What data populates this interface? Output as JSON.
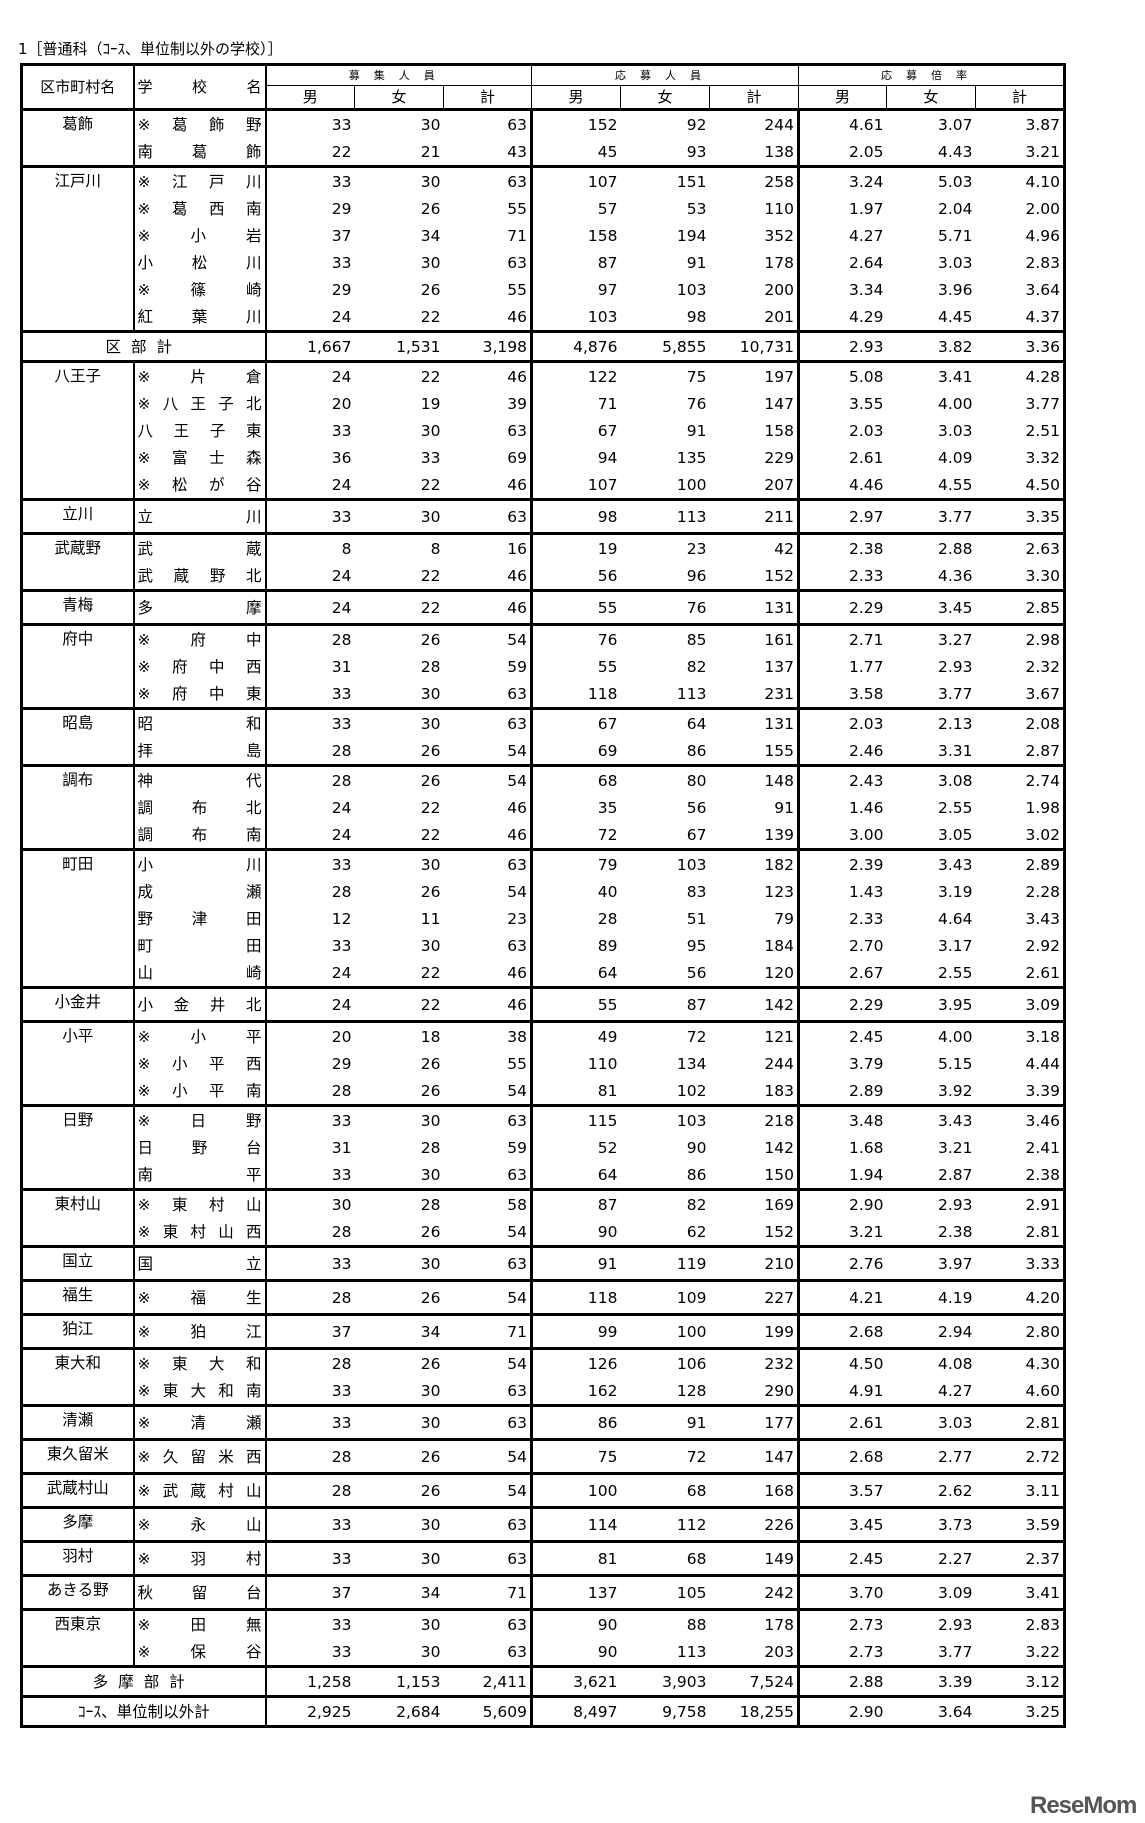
{
  "title": "1［普通科（ｺｰｽ、単位制以外の学校）］",
  "headers": {
    "district": "区市町村名",
    "school": "学　校　名",
    "groups": [
      "募集人員",
      "応募人員",
      "応募倍率"
    ],
    "sub": [
      "男",
      "女",
      "計"
    ]
  },
  "sections": [
    {
      "district": "葛飾",
      "rows": [
        {
          "school": "※葛飾野",
          "v": [
            "33",
            "30",
            "63",
            "152",
            "92",
            "244",
            "4.61",
            "3.07",
            "3.87"
          ]
        },
        {
          "school": "南葛飾",
          "v": [
            "22",
            "21",
            "43",
            "45",
            "93",
            "138",
            "2.05",
            "4.43",
            "3.21"
          ]
        }
      ]
    },
    {
      "district": "江戸川",
      "rows": [
        {
          "school": "※江戸川",
          "v": [
            "33",
            "30",
            "63",
            "107",
            "151",
            "258",
            "3.24",
            "5.03",
            "4.10"
          ]
        },
        {
          "school": "※葛西南",
          "v": [
            "29",
            "26",
            "55",
            "57",
            "53",
            "110",
            "1.97",
            "2.04",
            "2.00"
          ]
        },
        {
          "school": "※小岩",
          "v": [
            "37",
            "34",
            "71",
            "158",
            "194",
            "352",
            "4.27",
            "5.71",
            "4.96"
          ]
        },
        {
          "school": "小松川",
          "v": [
            "33",
            "30",
            "63",
            "87",
            "91",
            "178",
            "2.64",
            "3.03",
            "2.83"
          ]
        },
        {
          "school": "※篠崎",
          "v": [
            "29",
            "26",
            "55",
            "97",
            "103",
            "200",
            "3.34",
            "3.96",
            "3.64"
          ]
        },
        {
          "school": "紅葉川",
          "v": [
            "24",
            "22",
            "46",
            "103",
            "98",
            "201",
            "4.29",
            "4.45",
            "4.37"
          ]
        }
      ]
    },
    {
      "subtotal": "区部計",
      "v": [
        "1,667",
        "1,531",
        "3,198",
        "4,876",
        "5,855",
        "10,731",
        "2.93",
        "3.82",
        "3.36"
      ]
    },
    {
      "district": "八王子",
      "rows": [
        {
          "school": "※片倉",
          "v": [
            "24",
            "22",
            "46",
            "122",
            "75",
            "197",
            "5.08",
            "3.41",
            "4.28"
          ]
        },
        {
          "school": "※八王子北",
          "v": [
            "20",
            "19",
            "39",
            "71",
            "76",
            "147",
            "3.55",
            "4.00",
            "3.77"
          ]
        },
        {
          "school": "八王子東",
          "v": [
            "33",
            "30",
            "63",
            "67",
            "91",
            "158",
            "2.03",
            "3.03",
            "2.51"
          ]
        },
        {
          "school": "※富士森",
          "v": [
            "36",
            "33",
            "69",
            "94",
            "135",
            "229",
            "2.61",
            "4.09",
            "3.32"
          ]
        },
        {
          "school": "※松が谷",
          "v": [
            "24",
            "22",
            "46",
            "107",
            "100",
            "207",
            "4.46",
            "4.55",
            "4.50"
          ]
        }
      ]
    },
    {
      "district": "立川",
      "rows": [
        {
          "school": "立川",
          "v": [
            "33",
            "30",
            "63",
            "98",
            "113",
            "211",
            "2.97",
            "3.77",
            "3.35"
          ]
        }
      ]
    },
    {
      "district": "武蔵野",
      "rows": [
        {
          "school": "武蔵",
          "v": [
            "8",
            "8",
            "16",
            "19",
            "23",
            "42",
            "2.38",
            "2.88",
            "2.63"
          ]
        },
        {
          "school": "武蔵野北",
          "v": [
            "24",
            "22",
            "46",
            "56",
            "96",
            "152",
            "2.33",
            "4.36",
            "3.30"
          ]
        }
      ]
    },
    {
      "district": "青梅",
      "rows": [
        {
          "school": "多摩",
          "v": [
            "24",
            "22",
            "46",
            "55",
            "76",
            "131",
            "2.29",
            "3.45",
            "2.85"
          ]
        }
      ]
    },
    {
      "district": "府中",
      "rows": [
        {
          "school": "※府中",
          "v": [
            "28",
            "26",
            "54",
            "76",
            "85",
            "161",
            "2.71",
            "3.27",
            "2.98"
          ]
        },
        {
          "school": "※府中西",
          "v": [
            "31",
            "28",
            "59",
            "55",
            "82",
            "137",
            "1.77",
            "2.93",
            "2.32"
          ]
        },
        {
          "school": "※府中東",
          "v": [
            "33",
            "30",
            "63",
            "118",
            "113",
            "231",
            "3.58",
            "3.77",
            "3.67"
          ]
        }
      ]
    },
    {
      "district": "昭島",
      "rows": [
        {
          "school": "昭和",
          "v": [
            "33",
            "30",
            "63",
            "67",
            "64",
            "131",
            "2.03",
            "2.13",
            "2.08"
          ]
        },
        {
          "school": "拝島",
          "v": [
            "28",
            "26",
            "54",
            "69",
            "86",
            "155",
            "2.46",
            "3.31",
            "2.87"
          ]
        }
      ]
    },
    {
      "district": "調布",
      "rows": [
        {
          "school": "神代",
          "v": [
            "28",
            "26",
            "54",
            "68",
            "80",
            "148",
            "2.43",
            "3.08",
            "2.74"
          ]
        },
        {
          "school": "調布北",
          "v": [
            "24",
            "22",
            "46",
            "35",
            "56",
            "91",
            "1.46",
            "2.55",
            "1.98"
          ]
        },
        {
          "school": "調布南",
          "v": [
            "24",
            "22",
            "46",
            "72",
            "67",
            "139",
            "3.00",
            "3.05",
            "3.02"
          ]
        }
      ]
    },
    {
      "district": "町田",
      "rows": [
        {
          "school": "小川",
          "v": [
            "33",
            "30",
            "63",
            "79",
            "103",
            "182",
            "2.39",
            "3.43",
            "2.89"
          ]
        },
        {
          "school": "成瀬",
          "v": [
            "28",
            "26",
            "54",
            "40",
            "83",
            "123",
            "1.43",
            "3.19",
            "2.28"
          ]
        },
        {
          "school": "野津田",
          "v": [
            "12",
            "11",
            "23",
            "28",
            "51",
            "79",
            "2.33",
            "4.64",
            "3.43"
          ]
        },
        {
          "school": "町田",
          "v": [
            "33",
            "30",
            "63",
            "89",
            "95",
            "184",
            "2.70",
            "3.17",
            "2.92"
          ]
        },
        {
          "school": "山崎",
          "v": [
            "24",
            "22",
            "46",
            "64",
            "56",
            "120",
            "2.67",
            "2.55",
            "2.61"
          ]
        }
      ]
    },
    {
      "district": "小金井",
      "rows": [
        {
          "school": "小金井北",
          "v": [
            "24",
            "22",
            "46",
            "55",
            "87",
            "142",
            "2.29",
            "3.95",
            "3.09"
          ]
        }
      ]
    },
    {
      "district": "小平",
      "rows": [
        {
          "school": "※小平",
          "v": [
            "20",
            "18",
            "38",
            "49",
            "72",
            "121",
            "2.45",
            "4.00",
            "3.18"
          ]
        },
        {
          "school": "※小平西",
          "v": [
            "29",
            "26",
            "55",
            "110",
            "134",
            "244",
            "3.79",
            "5.15",
            "4.44"
          ]
        },
        {
          "school": "※小平南",
          "v": [
            "28",
            "26",
            "54",
            "81",
            "102",
            "183",
            "2.89",
            "3.92",
            "3.39"
          ]
        }
      ]
    },
    {
      "district": "日野",
      "rows": [
        {
          "school": "※日野",
          "v": [
            "33",
            "30",
            "63",
            "115",
            "103",
            "218",
            "3.48",
            "3.43",
            "3.46"
          ]
        },
        {
          "school": "日野台",
          "v": [
            "31",
            "28",
            "59",
            "52",
            "90",
            "142",
            "1.68",
            "3.21",
            "2.41"
          ]
        },
        {
          "school": "南平",
          "v": [
            "33",
            "30",
            "63",
            "64",
            "86",
            "150",
            "1.94",
            "2.87",
            "2.38"
          ]
        }
      ]
    },
    {
      "district": "東村山",
      "rows": [
        {
          "school": "※東村山",
          "v": [
            "30",
            "28",
            "58",
            "87",
            "82",
            "169",
            "2.90",
            "2.93",
            "2.91"
          ]
        },
        {
          "school": "※東村山西",
          "v": [
            "28",
            "26",
            "54",
            "90",
            "62",
            "152",
            "3.21",
            "2.38",
            "2.81"
          ]
        }
      ]
    },
    {
      "district": "国立",
      "rows": [
        {
          "school": "国立",
          "v": [
            "33",
            "30",
            "63",
            "91",
            "119",
            "210",
            "2.76",
            "3.97",
            "3.33"
          ]
        }
      ]
    },
    {
      "district": "福生",
      "rows": [
        {
          "school": "※福生",
          "v": [
            "28",
            "26",
            "54",
            "118",
            "109",
            "227",
            "4.21",
            "4.19",
            "4.20"
          ]
        }
      ]
    },
    {
      "district": "狛江",
      "rows": [
        {
          "school": "※狛江",
          "v": [
            "37",
            "34",
            "71",
            "99",
            "100",
            "199",
            "2.68",
            "2.94",
            "2.80"
          ]
        }
      ]
    },
    {
      "district": "東大和",
      "rows": [
        {
          "school": "※東大和",
          "v": [
            "28",
            "26",
            "54",
            "126",
            "106",
            "232",
            "4.50",
            "4.08",
            "4.30"
          ]
        },
        {
          "school": "※東大和南",
          "v": [
            "33",
            "30",
            "63",
            "162",
            "128",
            "290",
            "4.91",
            "4.27",
            "4.60"
          ]
        }
      ]
    },
    {
      "district": "清瀬",
      "rows": [
        {
          "school": "※清瀬",
          "v": [
            "33",
            "30",
            "63",
            "86",
            "91",
            "177",
            "2.61",
            "3.03",
            "2.81"
          ]
        }
      ]
    },
    {
      "district": "東久留米",
      "rows": [
        {
          "school": "※久留米西",
          "v": [
            "28",
            "26",
            "54",
            "75",
            "72",
            "147",
            "2.68",
            "2.77",
            "2.72"
          ]
        }
      ]
    },
    {
      "district": "武蔵村山",
      "rows": [
        {
          "school": "※武蔵村山",
          "v": [
            "28",
            "26",
            "54",
            "100",
            "68",
            "168",
            "3.57",
            "2.62",
            "3.11"
          ]
        }
      ]
    },
    {
      "district": "多摩",
      "rows": [
        {
          "school": "※永山",
          "v": [
            "33",
            "30",
            "63",
            "114",
            "112",
            "226",
            "3.45",
            "3.73",
            "3.59"
          ]
        }
      ]
    },
    {
      "district": "羽村",
      "rows": [
        {
          "school": "※羽村",
          "v": [
            "33",
            "30",
            "63",
            "81",
            "68",
            "149",
            "2.45",
            "2.27",
            "2.37"
          ]
        }
      ]
    },
    {
      "district": "あきる野",
      "rows": [
        {
          "school": "秋留台",
          "v": [
            "37",
            "34",
            "71",
            "137",
            "105",
            "242",
            "3.70",
            "3.09",
            "3.41"
          ]
        }
      ]
    },
    {
      "district": "西東京",
      "rows": [
        {
          "school": "※田無",
          "v": [
            "33",
            "30",
            "63",
            "90",
            "88",
            "178",
            "2.73",
            "2.93",
            "2.83"
          ]
        },
        {
          "school": "※保谷",
          "v": [
            "33",
            "30",
            "63",
            "90",
            "113",
            "203",
            "2.73",
            "3.77",
            "3.22"
          ]
        }
      ]
    },
    {
      "subtotal": "多摩部計",
      "v": [
        "1,258",
        "1,153",
        "2,411",
        "3,621",
        "3,903",
        "7,524",
        "2.88",
        "3.39",
        "3.12"
      ]
    },
    {
      "subtotal": "ｺｰｽ、単位制以外計",
      "small": true,
      "v": [
        "2,925",
        "2,684",
        "5,609",
        "8,497",
        "9,758",
        "18,255",
        "2.90",
        "3.64",
        "3.25"
      ]
    }
  ],
  "watermark": "ReseMom"
}
